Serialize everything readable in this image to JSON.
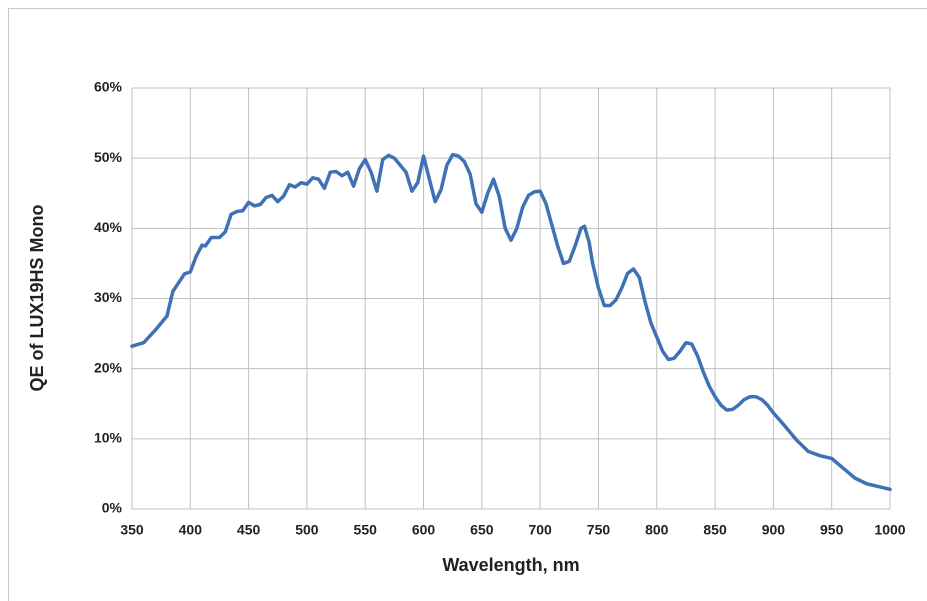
{
  "chart_data": {
    "type": "line",
    "x_label": "Wavelength, nm",
    "y_label": "QE of LUX19HS Mono",
    "x": [
      350,
      360,
      370,
      380,
      385,
      395,
      400,
      405,
      410,
      413,
      418,
      425,
      430,
      435,
      440,
      445,
      450,
      455,
      460,
      465,
      470,
      475,
      480,
      485,
      490,
      495,
      500,
      505,
      510,
      515,
      520,
      525,
      530,
      535,
      540,
      545,
      550,
      555,
      560,
      565,
      570,
      575,
      580,
      585,
      590,
      595,
      600,
      605,
      610,
      615,
      620,
      625,
      630,
      635,
      640,
      645,
      650,
      655,
      660,
      665,
      670,
      675,
      680,
      685,
      690,
      695,
      700,
      705,
      710,
      715,
      720,
      725,
      730,
      735,
      738,
      742,
      745,
      750,
      755,
      760,
      765,
      770,
      775,
      780,
      785,
      790,
      795,
      800,
      805,
      810,
      815,
      820,
      825,
      830,
      835,
      840,
      845,
      850,
      855,
      860,
      865,
      870,
      875,
      880,
      885,
      890,
      895,
      900,
      910,
      920,
      930,
      940,
      950,
      960,
      970,
      980,
      990,
      1000
    ],
    "series": [
      {
        "name": "QE",
        "color": "#3f72b4",
        "values": [
          23.2,
          23.7,
          25.5,
          27.5,
          31,
          33.5,
          33.8,
          36,
          37.6,
          37.5,
          38.7,
          38.7,
          39.5,
          42,
          42.4,
          42.5,
          43.7,
          43.2,
          43.4,
          44.4,
          44.7,
          43.8,
          44.6,
          46.2,
          45.9,
          46.5,
          46.3,
          47.2,
          47,
          45.7,
          48,
          48.1,
          47.5,
          48,
          46,
          48.5,
          49.8,
          48,
          45.3,
          49.8,
          50.4,
          50,
          49,
          48,
          45.3,
          46.5,
          50.3,
          47,
          43.8,
          45.5,
          49,
          50.5,
          50.3,
          49.5,
          47.7,
          43.5,
          42.3,
          45,
          47,
          44.5,
          40,
          38.3,
          40,
          43,
          44.7,
          45.2,
          45.3,
          43.5,
          40.5,
          37.5,
          35,
          35.3,
          37.5,
          40,
          40.3,
          38,
          35,
          31.5,
          29,
          29,
          29.8,
          31.5,
          33.6,
          34.2,
          33,
          29.5,
          26.5,
          24.5,
          22.5,
          21.3,
          21.5,
          22.5,
          23.7,
          23.5,
          21.8,
          19.5,
          17.5,
          16,
          14.8,
          14.1,
          14.2,
          14.8,
          15.6,
          16,
          16,
          15.6,
          14.8,
          13.7,
          11.8,
          9.8,
          8.2,
          7.6,
          7.2,
          5.8,
          4.4,
          3.6,
          3.2,
          2.8
        ]
      }
    ],
    "xlim": [
      350,
      1000
    ],
    "xticks": [
      350,
      400,
      450,
      500,
      550,
      600,
      650,
      700,
      750,
      800,
      850,
      900,
      950,
      1000
    ],
    "ylim": [
      0,
      60
    ],
    "yticks": [
      {
        "value": 0,
        "label": "0%"
      },
      {
        "value": 10,
        "label": "10%"
      },
      {
        "value": 20,
        "label": "20%"
      },
      {
        "value": 30,
        "label": "30%"
      },
      {
        "value": 40,
        "label": "40%"
      },
      {
        "value": 50,
        "label": "50%"
      },
      {
        "value": 60,
        "label": "60%"
      }
    ],
    "grid": true
  }
}
